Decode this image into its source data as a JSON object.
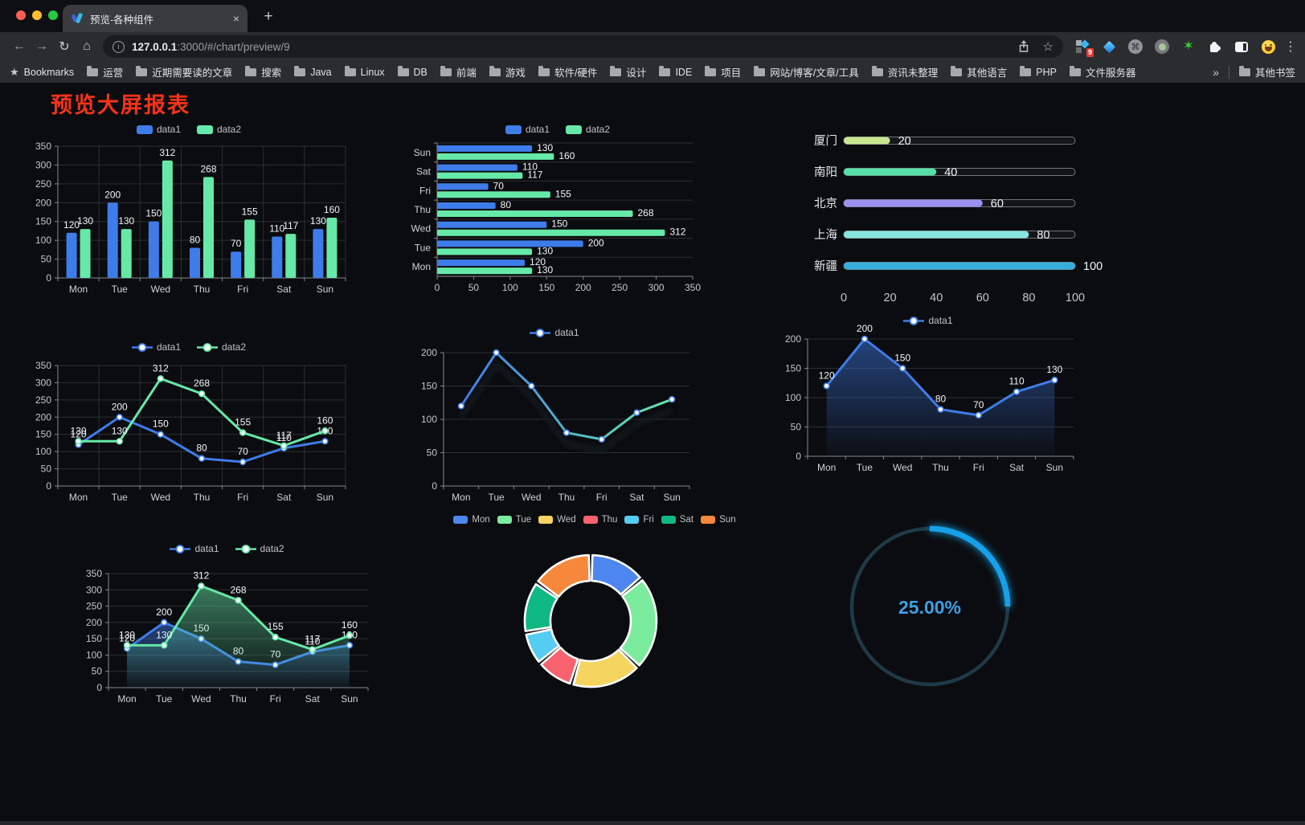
{
  "window": {
    "tab_title": "预览-各种组件",
    "url_host": "127.0.0.1",
    "url_rest": ":3000/#/chart/preview/9",
    "extension_badge": "9",
    "new_tab_glyph": "+",
    "close_glyph": "×",
    "extensions": [
      "colorful-blocks",
      "blue-diamond",
      "command-circle",
      "green-dot-circle",
      "green-star",
      "puzzle",
      "split-square",
      "emoji-face"
    ]
  },
  "bookmarks": {
    "label_bookmarks": "Bookmarks",
    "items": [
      "运营",
      "近期需要读的文章",
      "搜索",
      "Java",
      "Linux",
      "DB",
      "前端",
      "游戏",
      "软件/硬件",
      "设计",
      "IDE",
      "项目",
      "网站/博客/文章/工具",
      "资讯未整理",
      "其他语言",
      "PHP",
      "文件服务器"
    ],
    "overflow": "»",
    "other": "其他书签"
  },
  "page": {
    "title": "预览大屏报表",
    "title_color": "#F5331A"
  },
  "chart_data": [
    {
      "id": "bar-vertical",
      "type": "bar",
      "categories": [
        "Mon",
        "Tue",
        "Wed",
        "Thu",
        "Fri",
        "Sat",
        "Sun"
      ],
      "series": [
        {
          "name": "data1",
          "color": "#3E7CEA",
          "values": [
            120,
            200,
            150,
            80,
            70,
            110,
            130
          ]
        },
        {
          "name": "data2",
          "color": "#66E9A8",
          "values": [
            130,
            130,
            312,
            268,
            155,
            117,
            160
          ]
        }
      ],
      "ylim": [
        0,
        350
      ],
      "ytick": 50,
      "show_labels": true,
      "grid": true,
      "legend_position": "top"
    },
    {
      "id": "bar-horizontal",
      "type": "bar-horizontal",
      "categories": [
        "Mon",
        "Tue",
        "Wed",
        "Thu",
        "Fri",
        "Sat",
        "Sun"
      ],
      "bottom_to_top": true,
      "series": [
        {
          "name": "data1",
          "color": "#3E7CEA",
          "values": [
            120,
            200,
            150,
            80,
            70,
            110,
            130
          ]
        },
        {
          "name": "data2",
          "color": "#66E9A8",
          "values": [
            130,
            130,
            312,
            268,
            155,
            117,
            160
          ]
        }
      ],
      "xlim": [
        0,
        350
      ],
      "xtick": 50,
      "show_labels": true,
      "grid": true,
      "legend_position": "top"
    },
    {
      "id": "progress-bars",
      "type": "progress",
      "items": [
        {
          "label": "厦门",
          "value": 20,
          "color": "#C9E691"
        },
        {
          "label": "南阳",
          "value": 40,
          "color": "#57DFA7"
        },
        {
          "label": "北京",
          "value": 60,
          "color": "#9A92F0"
        },
        {
          "label": "上海",
          "value": 80,
          "color": "#86E5DF"
        },
        {
          "label": "新疆",
          "value": 100,
          "color": "#38ADDC"
        }
      ],
      "xlim": [
        0,
        100
      ],
      "xticks": [
        0,
        20,
        40,
        60,
        80,
        100
      ]
    },
    {
      "id": "line-two-series",
      "type": "line",
      "categories": [
        "Mon",
        "Tue",
        "Wed",
        "Thu",
        "Fri",
        "Sat",
        "Sun"
      ],
      "series": [
        {
          "name": "data1",
          "color": "#3E7CEA",
          "values": [
            120,
            200,
            150,
            80,
            70,
            110,
            130
          ]
        },
        {
          "name": "data2",
          "color": "#66E9A8",
          "values": [
            130,
            130,
            312,
            268,
            155,
            117,
            160
          ]
        }
      ],
      "ylim": [
        0,
        350
      ],
      "ytick": 50,
      "show_labels": true,
      "grid": true,
      "legend_position": "top"
    },
    {
      "id": "line-gradient",
      "type": "line",
      "categories": [
        "Mon",
        "Tue",
        "Wed",
        "Thu",
        "Fri",
        "Sat",
        "Sun"
      ],
      "series": [
        {
          "name": "data1",
          "color": "#3E7CEA",
          "gradient": [
            "#3E7CEA",
            "#66E9A8"
          ],
          "shadow": true,
          "values": [
            120,
            200,
            150,
            80,
            70,
            110,
            130
          ]
        }
      ],
      "ylim": [
        0,
        200
      ],
      "ytick": 50,
      "show_labels": false,
      "grid": true,
      "legend_position": "top"
    },
    {
      "id": "area-single",
      "type": "area",
      "categories": [
        "Mon",
        "Tue",
        "Wed",
        "Thu",
        "Fri",
        "Sat",
        "Sun"
      ],
      "series": [
        {
          "name": "data1",
          "color": "#3E7CEA",
          "area": true,
          "values": [
            120,
            200,
            150,
            80,
            70,
            110,
            130
          ]
        }
      ],
      "ylim": [
        0,
        200
      ],
      "ytick": 50,
      "show_labels": true,
      "grid": true,
      "legend_position": "top"
    },
    {
      "id": "area-two-series",
      "type": "area",
      "categories": [
        "Mon",
        "Tue",
        "Wed",
        "Thu",
        "Fri",
        "Sat",
        "Sun"
      ],
      "series": [
        {
          "name": "data1",
          "color": "#3E7CEA",
          "area": true,
          "values": [
            120,
            200,
            150,
            80,
            70,
            110,
            130
          ]
        },
        {
          "name": "data2",
          "color": "#66E9A8",
          "area": true,
          "values": [
            130,
            130,
            312,
            268,
            155,
            117,
            160
          ]
        }
      ],
      "ylim": [
        0,
        350
      ],
      "ytick": 50,
      "show_labels": true,
      "grid": true,
      "legend_position": "top"
    },
    {
      "id": "donut",
      "type": "pie",
      "categories": [
        "Mon",
        "Tue",
        "Wed",
        "Thu",
        "Fri",
        "Sat",
        "Sun"
      ],
      "values": [
        120,
        200,
        150,
        80,
        70,
        110,
        130
      ],
      "colors": [
        "#4E86F0",
        "#7BEB9E",
        "#F5D45F",
        "#F8626F",
        "#55CCF2",
        "#10B981",
        "#F5883B"
      ],
      "legend_position": "top"
    },
    {
      "id": "gauge",
      "type": "gauge",
      "value": 25,
      "label": "25.00%",
      "color": "#18A0E8",
      "track_color": "#1E3A46",
      "text_color": "#3E9FE8"
    }
  ]
}
